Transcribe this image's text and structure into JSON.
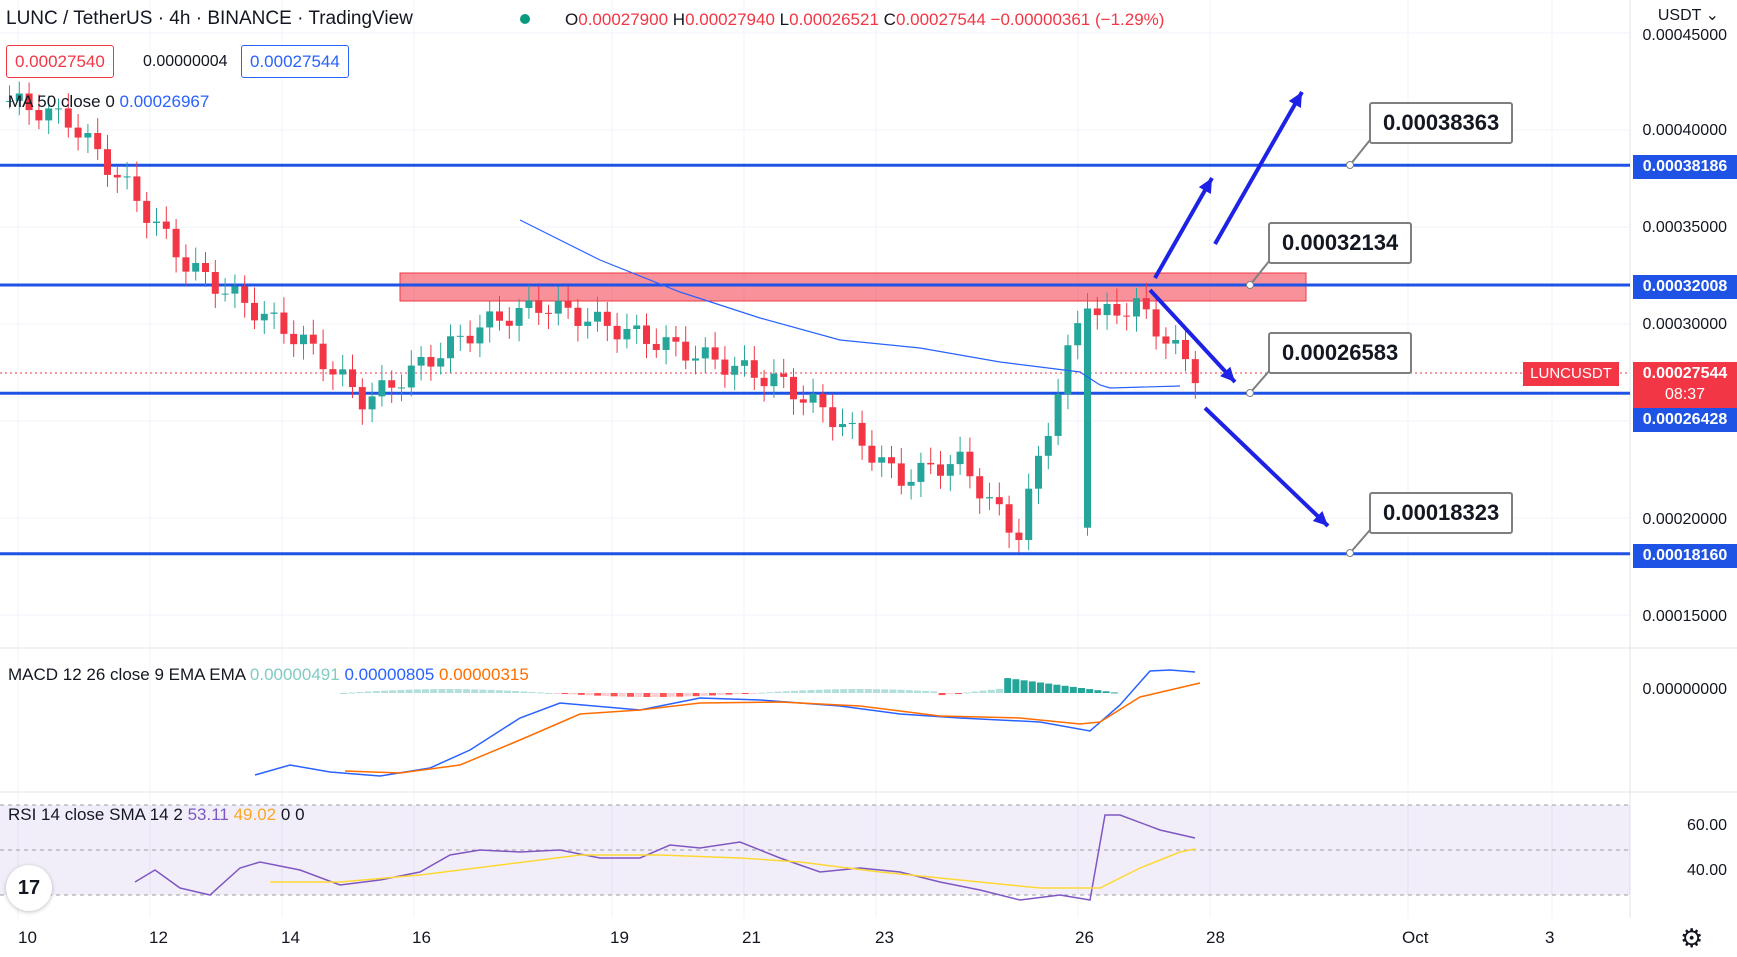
{
  "header": {
    "symbol": "LUNC / TetherUS · 4h · BINANCE · TradingView",
    "open_label": "O",
    "open": "0.00027900",
    "high_label": "H",
    "high": "0.00027940",
    "low_label": "L",
    "low": "0.00026521",
    "close_label": "C",
    "close": "0.00027544",
    "change": "−0.00000361 (−1.29%)",
    "currency": "USDT",
    "currency_icon": "chevron-down-icon"
  },
  "quote": {
    "bid": "0.00027540",
    "spread": "0.00000004",
    "ask": "0.00027544"
  },
  "ma": {
    "label": "MA 50 close 0",
    "value": "0.00026967"
  },
  "levels": [
    {
      "value": "0.00038186",
      "price": 0.00038186
    },
    {
      "value": "0.00032008",
      "price": 0.00032008
    },
    {
      "value": "0.00026428",
      "price": 0.00026428
    },
    {
      "value": "0.00018160",
      "price": 0.0001816
    }
  ],
  "callouts": [
    "0.00038363",
    "0.00032134",
    "0.00026583",
    "0.00018323"
  ],
  "last_price": {
    "symbol": "LUNCUSDT",
    "value": "0.00027544",
    "countdown": "08:37"
  },
  "price_axis": [
    "0.00045000",
    "0.00040000",
    "0.00035000",
    "0.00030000",
    "0.00020000",
    "0.00015000"
  ],
  "macd": {
    "label": "MACD 12 26 close 9 EMA EMA",
    "hist": "0.00000491",
    "macd": "0.00000805",
    "signal": "0.00000315",
    "axis": "0.00000000"
  },
  "rsi": {
    "label": "RSI 14 close SMA 14 2",
    "rsi": "53.11",
    "sma": "49.02",
    "a": "0",
    "b": "0",
    "axis": [
      "60.00",
      "40.00"
    ]
  },
  "dates": [
    "10",
    "12",
    "14",
    "16",
    "19",
    "21",
    "23",
    "26",
    "28",
    "Oct",
    "3"
  ],
  "icons": {
    "logo": "tradingview-logo-icon",
    "settings": "gear-icon"
  },
  "colors": {
    "up": "#26a69a",
    "down": "#f23645",
    "level": "#1e53e5",
    "ma": "#2962ff",
    "signal": "#ff6d00",
    "rsi": "#7e57c2",
    "rsi_sma": "#fdd835"
  },
  "chart_data": {
    "type": "candlestick",
    "timeframe": "4h",
    "x_axis": [
      "10",
      "12",
      "14",
      "16",
      "19",
      "21",
      "23",
      "26",
      "28",
      "Oct",
      "3"
    ],
    "ylim": [
      0.00013,
      0.00046
    ],
    "close_approx": [
      0.000415,
      0.000405,
      0.00037,
      0.00033,
      0.00031,
      0.00029,
      0.00026,
      0.00028,
      0.0003,
      0.00031,
      0.0003,
      0.00029,
      0.00028,
      0.00027,
      0.00025,
      0.00022,
      0.00023,
      0.00019,
      0.0003,
      0.00031,
      0.000275
    ],
    "series": [
      {
        "name": "MA 50 close 0",
        "last": 0.00026967
      },
      {
        "name": "MACD",
        "last": 8.05e-06
      },
      {
        "name": "RSI",
        "last": 53.11
      }
    ],
    "support_resistance": [
      0.00038186,
      0.00032008,
      0.00026428,
      0.0001816
    ]
  }
}
